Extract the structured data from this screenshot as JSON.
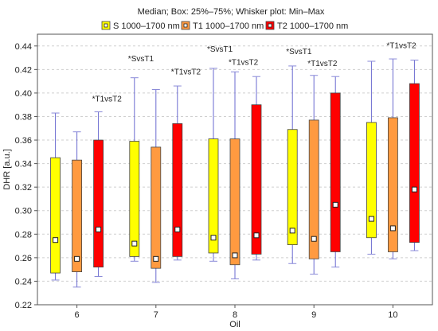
{
  "chart_data": {
    "type": "box",
    "subtitle": "Median; Box: 25%–75%; Whisker plot: Min–Max",
    "xlabel": "Oil",
    "ylabel": "DHR [a.u.]",
    "ylim": [
      0.22,
      0.45
    ],
    "yticks": [
      "0.22",
      "0.24",
      "0.26",
      "0.28",
      "0.30",
      "0.32",
      "0.34",
      "0.36",
      "0.38",
      "0.40",
      "0.42",
      "0.44"
    ],
    "categories": [
      "6",
      "7",
      "8",
      "9",
      "10"
    ],
    "grid": true,
    "legend_position": "top",
    "series": [
      {
        "name": "S 1000–1700 nm",
        "color": "#ffff00",
        "stats": [
          {
            "min": 0.241,
            "q1": 0.247,
            "median": 0.275,
            "q3": 0.345,
            "max": 0.383
          },
          {
            "min": 0.257,
            "q1": 0.261,
            "median": 0.272,
            "q3": 0.359,
            "max": 0.413
          },
          {
            "min": 0.257,
            "q1": 0.264,
            "median": 0.277,
            "q3": 0.361,
            "max": 0.421
          },
          {
            "min": 0.255,
            "q1": 0.271,
            "median": 0.283,
            "q3": 0.369,
            "max": 0.423
          },
          {
            "min": 0.263,
            "q1": 0.277,
            "median": 0.293,
            "q3": 0.375,
            "max": 0.427
          }
        ]
      },
      {
        "name": "T1 1000–1700 nm",
        "color": "#ff9a40",
        "stats": [
          {
            "min": 0.235,
            "q1": 0.248,
            "median": 0.259,
            "q3": 0.343,
            "max": 0.367
          },
          {
            "min": 0.239,
            "q1": 0.251,
            "median": 0.259,
            "q3": 0.354,
            "max": 0.403
          },
          {
            "min": 0.242,
            "q1": 0.254,
            "median": 0.262,
            "q3": 0.361,
            "max": 0.418
          },
          {
            "min": 0.246,
            "q1": 0.259,
            "median": 0.276,
            "q3": 0.377,
            "max": 0.415
          },
          {
            "min": 0.259,
            "q1": 0.265,
            "median": 0.285,
            "q3": 0.379,
            "max": 0.429
          }
        ]
      },
      {
        "name": "T2 1000–1700 nm",
        "color": "#ff0000",
        "stats": [
          {
            "min": 0.244,
            "q1": 0.252,
            "median": 0.284,
            "q3": 0.36,
            "max": 0.384
          },
          {
            "min": 0.258,
            "q1": 0.261,
            "median": 0.284,
            "q3": 0.374,
            "max": 0.406
          },
          {
            "min": 0.258,
            "q1": 0.263,
            "median": 0.279,
            "q3": 0.39,
            "max": 0.414
          },
          {
            "min": 0.252,
            "q1": 0.265,
            "median": 0.305,
            "q3": 0.4,
            "max": 0.414
          },
          {
            "min": 0.266,
            "q1": 0.273,
            "median": 0.318,
            "q3": 0.408,
            "max": 0.428
          }
        ]
      }
    ],
    "annotations": [
      {
        "text": "*T1vsT2",
        "category": "6",
        "series": 2,
        "y": 0.393
      },
      {
        "text": "*SvsT1",
        "category": "7",
        "series": 0,
        "y": 0.427
      },
      {
        "text": "*T1vsT2",
        "category": "7",
        "series": 2,
        "y": 0.416
      },
      {
        "text": "*SvsT1",
        "category": "8",
        "series": 0,
        "y": 0.435
      },
      {
        "text": "*T1vsT2",
        "category": "8",
        "series": 1,
        "y": 0.424
      },
      {
        "text": "*SvsT1",
        "category": "9",
        "series": 0,
        "y": 0.433
      },
      {
        "text": "*T1vsT2",
        "category": "9",
        "series": 1,
        "y": 0.423
      },
      {
        "text": "*T1vsT2",
        "category": "10",
        "series": 1,
        "y": 0.438
      }
    ]
  }
}
